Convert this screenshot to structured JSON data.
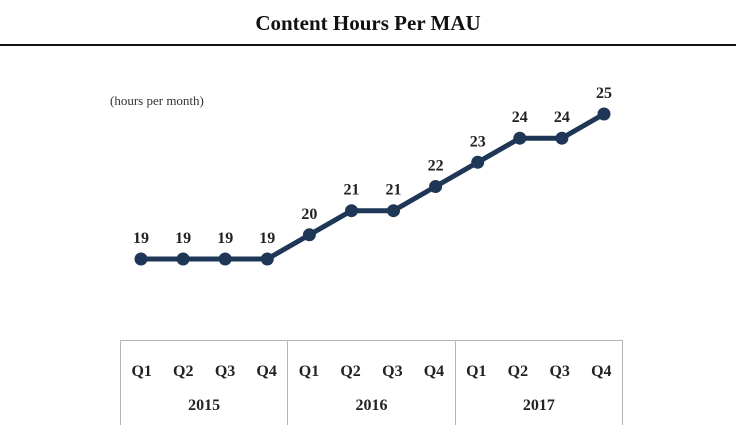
{
  "page": {
    "title": "Content Hours Per MAU"
  },
  "chart_data": {
    "type": "line",
    "title": "Content Hours Per MAU",
    "unit_label": "(hours per month)",
    "xlabel": "",
    "ylabel": "",
    "categories": [
      "Q1",
      "Q2",
      "Q3",
      "Q4",
      "Q1",
      "Q2",
      "Q3",
      "Q4",
      "Q1",
      "Q2",
      "Q3",
      "Q4"
    ],
    "groups": [
      {
        "label": "2015",
        "span": 4
      },
      {
        "label": "2016",
        "span": 4
      },
      {
        "label": "2017",
        "span": 4
      }
    ],
    "series": [
      {
        "values": [
          19,
          19,
          19,
          19,
          20,
          21,
          21,
          22,
          23,
          24,
          24,
          25
        ],
        "data_labels": [
          "19",
          "19",
          "19",
          "19",
          "20",
          "21",
          "21",
          "22",
          "23",
          "24",
          "24",
          "25"
        ],
        "color": "#1f3756"
      }
    ],
    "grid": false,
    "legend": "none"
  }
}
